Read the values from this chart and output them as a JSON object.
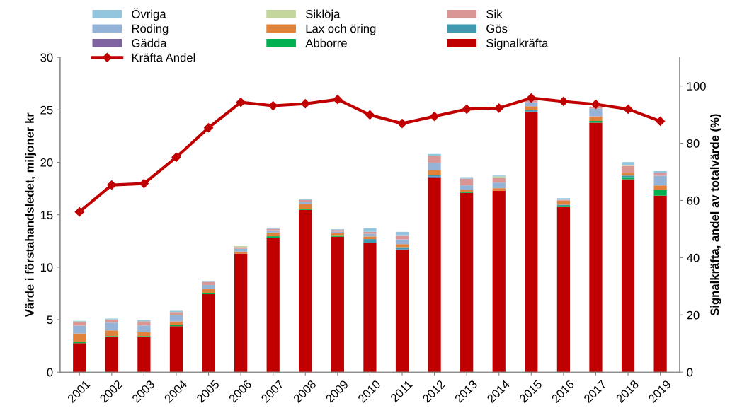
{
  "chart_data": {
    "type": "bar",
    "stacked": true,
    "categories": [
      "2001",
      "2002",
      "2003",
      "2004",
      "2005",
      "2006",
      "2007",
      "2008",
      "2009",
      "2010",
      "2011",
      "2012",
      "2013",
      "2014",
      "2015",
      "2016",
      "2017",
      "2018",
      "2019"
    ],
    "ylabel": "Värde i förstahandsledet, miljoner kr",
    "y2label": "Signalkräfta, andel av totalvärde (%)",
    "ylim": [
      0,
      30
    ],
    "yticks": [
      0,
      5,
      10,
      15,
      20,
      25,
      30
    ],
    "y2lim": [
      0,
      110
    ],
    "y2ticks": [
      0,
      20,
      40,
      60,
      80,
      100
    ],
    "grid": false,
    "legend": "top",
    "series": [
      {
        "name": "Signalkräfta",
        "color": "#c00000",
        "values": [
          2.76,
          3.33,
          3.33,
          4.38,
          7.42,
          11.31,
          12.77,
          15.46,
          12.9,
          12.32,
          11.69,
          18.54,
          17.08,
          17.28,
          24.84,
          15.73,
          23.78,
          18.38,
          16.81
        ]
      },
      {
        "name": "Abborre",
        "color": "#00b050",
        "values": [
          0.1,
          0.11,
          0.11,
          0.11,
          0.13,
          null,
          0.18,
          0.09,
          0.09,
          null,
          null,
          null,
          0.07,
          null,
          null,
          0.11,
          0.16,
          0.22,
          0.56
        ]
      },
      {
        "name": "Gädda",
        "color": "#8064a2",
        "values": [
          null,
          null,
          null,
          null,
          null,
          null,
          null,
          null,
          null,
          null,
          null,
          0.1,
          null,
          null,
          null,
          null,
          null,
          null,
          null
        ]
      },
      {
        "name": "Gös",
        "color": "#4198af",
        "values": [
          null,
          null,
          null,
          null,
          null,
          null,
          null,
          null,
          null,
          0.36,
          0.22,
          0.12,
          null,
          null,
          0.13,
          0.11,
          null,
          0.13,
          null
        ]
      },
      {
        "name": "Lax och öring",
        "color": "#e0823a",
        "values": [
          0.83,
          0.54,
          0.36,
          0.34,
          0.38,
          0.18,
          0.36,
          0.45,
          0.27,
          0.25,
          0.29,
          0.52,
          0.25,
          0.25,
          0.38,
          0.4,
          0.45,
          0.22,
          0.43
        ]
      },
      {
        "name": "Röding",
        "color": "#95b3d7",
        "values": [
          0.74,
          0.74,
          0.65,
          0.58,
          0.38,
          0.27,
          0.22,
          0.22,
          0.13,
          0.25,
          0.45,
          0.67,
          0.4,
          0.54,
          0.36,
          null,
          0.74,
          null,
          0.92
        ]
      },
      {
        "name": "Sik",
        "color": "#d99694",
        "values": [
          0.38,
          0.29,
          0.4,
          0.31,
          0.3,
          0.16,
          0.13,
          0.18,
          0.16,
          0.2,
          0.34,
          0.67,
          0.63,
          0.45,
          0.2,
          0.07,
          0.18,
          0.72,
          0.25
        ]
      },
      {
        "name": "Siklöja",
        "color": "#c3d69b",
        "values": [
          null,
          null,
          null,
          null,
          null,
          0.09,
          null,
          null,
          null,
          null,
          null,
          null,
          null,
          0.13,
          null,
          null,
          null,
          0.09,
          null
        ]
      },
      {
        "name": "Övriga",
        "color": "#92c5de",
        "values": [
          0.07,
          0.09,
          0.11,
          0.13,
          0.1,
          null,
          0.11,
          0.07,
          0.07,
          0.34,
          0.38,
          0.18,
          0.16,
          0.09,
          null,
          0.16,
          null,
          0.25,
          0.18
        ]
      },
      {
        "name": "Kräfta Andel",
        "type": "line",
        "axis": "y2",
        "color": "#c00000",
        "marker": "diamond",
        "line_style": "solid",
        "values": [
          56.0,
          65.4,
          65.9,
          75.1,
          85.4,
          94.3,
          93.1,
          93.8,
          95.3,
          89.9,
          86.9,
          89.4,
          91.9,
          92.3,
          95.8,
          94.6,
          93.6,
          91.9,
          87.7
        ]
      }
    ]
  }
}
